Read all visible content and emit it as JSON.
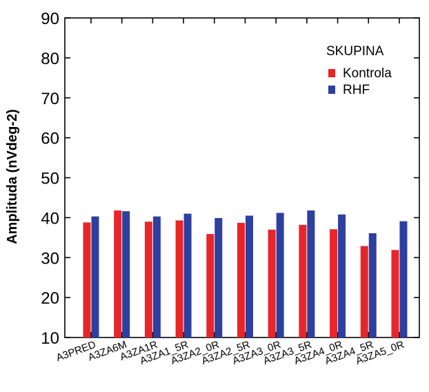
{
  "chart_data": {
    "type": "bar",
    "title": "",
    "xlabel": "",
    "ylabel": "Amplituda (nVdeg-2)",
    "ylim": [
      10,
      90
    ],
    "yticks": [
      10,
      20,
      30,
      40,
      50,
      60,
      70,
      80,
      90
    ],
    "grid": false,
    "legend": {
      "title": "SKUPINA",
      "position": "top-right"
    },
    "categories": [
      "A3PRED",
      "A3ZA6M",
      "A3ZA1R",
      "A3ZA1_5R",
      "A3ZA2_0R",
      "A3ZA2_5R",
      "A3ZA3_0R",
      "A3ZA3_5R",
      "A3ZA4_0R",
      "A3ZA4_5R",
      "A3ZA5_0R"
    ],
    "series": [
      {
        "name": "Kontrola",
        "color": "#e8262a",
        "values": [
          38.8,
          41.8,
          39.0,
          39.3,
          35.9,
          38.7,
          37.0,
          38.2,
          37.1,
          32.9,
          31.9
        ]
      },
      {
        "name": "RHF",
        "color": "#2d3f9f",
        "values": [
          40.3,
          41.6,
          40.3,
          41.0,
          39.9,
          40.5,
          41.2,
          41.8,
          40.8,
          36.1,
          39.1
        ]
      }
    ]
  }
}
